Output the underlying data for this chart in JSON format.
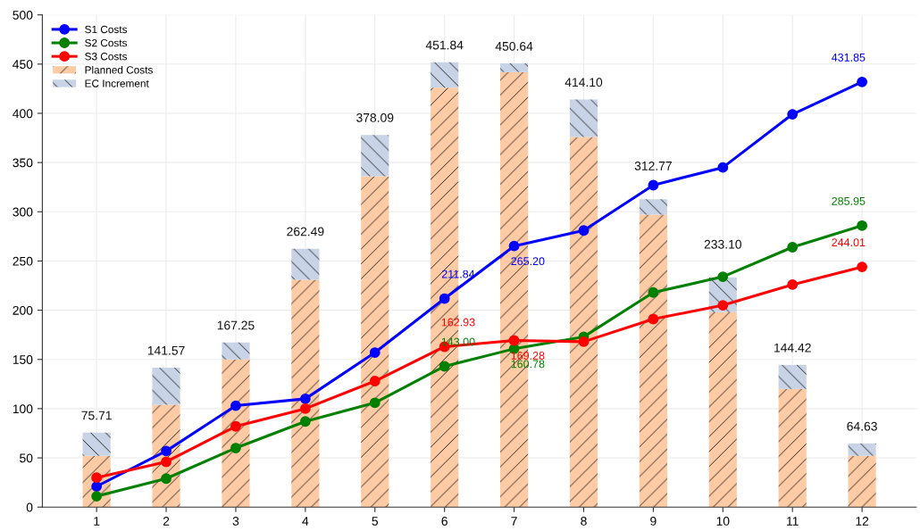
{
  "chart_data": {
    "type": "bar",
    "categories": [
      "1",
      "2",
      "3",
      "4",
      "5",
      "6",
      "7",
      "8",
      "9",
      "10",
      "11",
      "12"
    ],
    "ylim": [
      0,
      500
    ],
    "yticks": [
      0,
      50,
      100,
      150,
      200,
      250,
      300,
      350,
      400,
      450,
      500
    ],
    "grid": true,
    "legend": "top left",
    "stacked": true,
    "marker": "circle",
    "line_style": "solid",
    "totals": [
      "75.71",
      "141.57",
      "167.25",
      "262.49",
      "378.09",
      "451.84",
      "450.64",
      "414.10",
      "312.77",
      "233.10",
      "144.42",
      "64.63"
    ],
    "series": [
      {
        "name": "S1 Costs",
        "type": "line",
        "color": "#0000ff",
        "values": [
          21,
          57,
          103,
          110,
          157,
          211.84,
          265.2,
          281,
          327,
          345,
          399,
          431.85
        ],
        "value_labels": [
          null,
          null,
          null,
          null,
          null,
          "211.84",
          "265.20",
          null,
          null,
          null,
          null,
          "431.85"
        ]
      },
      {
        "name": "S2 Costs",
        "type": "line",
        "color": "#008000",
        "values": [
          11,
          29,
          60,
          87,
          106,
          143.0,
          160.78,
          173,
          218,
          234,
          264,
          285.95
        ],
        "value_labels": [
          null,
          null,
          null,
          null,
          null,
          "143.00",
          "160.78",
          null,
          null,
          null,
          null,
          "285.95"
        ]
      },
      {
        "name": "S3 Costs",
        "type": "line",
        "color": "#ff0000",
        "values": [
          30,
          46,
          82,
          100,
          128,
          162.93,
          169.28,
          168,
          191,
          205,
          226,
          244.01
        ],
        "value_labels": [
          null,
          null,
          null,
          null,
          null,
          "162.93",
          "169.28",
          null,
          null,
          null,
          null,
          "244.01"
        ]
      },
      {
        "name": "Planned Costs",
        "color": "#ffcba4",
        "values": [
          52,
          104,
          150,
          231,
          336,
          426,
          442,
          376,
          297,
          198,
          120,
          52
        ]
      },
      {
        "name": "EC Increment",
        "color": "#c8d3e6",
        "values": [
          23.71,
          37.57,
          17.25,
          31.49,
          42.09,
          25.84,
          8.64,
          38.1,
          15.77,
          35.1,
          24.42,
          12.63
        ]
      }
    ]
  }
}
